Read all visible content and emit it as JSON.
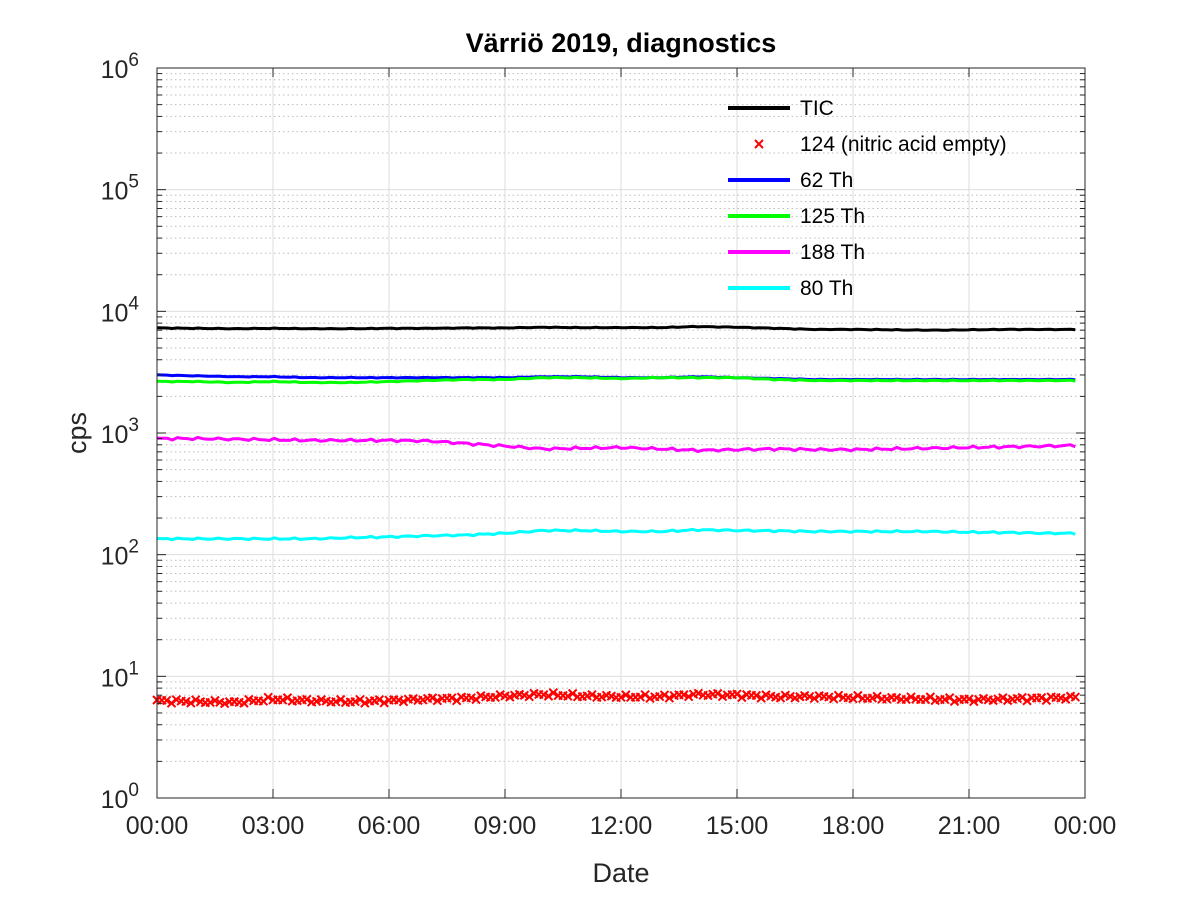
{
  "chart_data": {
    "type": "line",
    "title": "Värriö 2019, diagnostics",
    "xlabel": "Date",
    "ylabel": "cps",
    "x_ticks": [
      "00:00",
      "03:00",
      "06:00",
      "09:00",
      "12:00",
      "15:00",
      "18:00",
      "21:00",
      "00:00"
    ],
    "x_tick_hours": [
      0,
      3,
      6,
      9,
      12,
      15,
      18,
      21,
      24
    ],
    "xlim_hours": [
      0,
      24
    ],
    "y_scale": "log",
    "ylim": [
      1,
      1000000
    ],
    "y_tick_values": [
      1,
      10,
      100,
      1000,
      10000,
      100000,
      1000000
    ],
    "y_ticks": [
      {
        "base": "10",
        "exp": "0"
      },
      {
        "base": "10",
        "exp": "1"
      },
      {
        "base": "10",
        "exp": "2"
      },
      {
        "base": "10",
        "exp": "3"
      },
      {
        "base": "10",
        "exp": "4"
      },
      {
        "base": "10",
        "exp": "5"
      },
      {
        "base": "10",
        "exp": "6"
      }
    ],
    "grid": true,
    "minor_grid": true,
    "legend_position": "top-right",
    "series": [
      {
        "name": "TIC",
        "color": "#000000",
        "style": "line",
        "x": [
          0,
          1,
          2,
          3,
          4,
          5,
          6,
          7,
          8,
          9,
          10,
          11,
          12,
          13,
          14,
          15,
          16,
          17,
          18,
          19,
          20,
          21,
          22,
          23,
          23.75
        ],
        "y": [
          7300,
          7250,
          7200,
          7250,
          7200,
          7200,
          7250,
          7250,
          7300,
          7300,
          7400,
          7350,
          7350,
          7350,
          7500,
          7400,
          7250,
          7100,
          7100,
          7050,
          7000,
          7050,
          7100,
          7100,
          7100
        ]
      },
      {
        "name": "124 (nitric acid empty)",
        "color": "#ff0000",
        "style": "marker-x",
        "x": [
          0,
          1,
          2,
          3,
          4,
          5,
          6,
          7,
          8,
          9,
          10,
          11,
          12,
          13,
          14,
          15,
          16,
          17,
          18,
          19,
          20,
          21,
          22,
          23,
          23.75
        ],
        "y": [
          6.3,
          6.2,
          6.1,
          6.5,
          6.3,
          6.2,
          6.3,
          6.5,
          6.6,
          6.9,
          7.1,
          6.9,
          6.8,
          6.8,
          7.1,
          7.0,
          6.8,
          6.8,
          6.7,
          6.6,
          6.5,
          6.4,
          6.5,
          6.6,
          6.7
        ]
      },
      {
        "name": "62 Th",
        "color": "#0000ff",
        "style": "line",
        "x": [
          0,
          1,
          2,
          3,
          4,
          5,
          6,
          7,
          8,
          9,
          10,
          11,
          12,
          13,
          14,
          15,
          16,
          17,
          18,
          19,
          20,
          21,
          22,
          23,
          23.75
        ],
        "y": [
          3000,
          2950,
          2900,
          2900,
          2850,
          2850,
          2850,
          2850,
          2850,
          2850,
          2900,
          2900,
          2850,
          2850,
          2900,
          2850,
          2800,
          2750,
          2750,
          2750,
          2750,
          2750,
          2750,
          2750,
          2750
        ]
      },
      {
        "name": "125 Th",
        "color": "#00ff00",
        "style": "line",
        "x": [
          0,
          1,
          2,
          3,
          4,
          5,
          6,
          7,
          8,
          9,
          10,
          11,
          12,
          13,
          14,
          15,
          16,
          17,
          18,
          19,
          20,
          21,
          22,
          23,
          23.75
        ],
        "y": [
          2650,
          2650,
          2600,
          2650,
          2600,
          2600,
          2650,
          2700,
          2750,
          2750,
          2850,
          2850,
          2800,
          2850,
          2850,
          2850,
          2750,
          2700,
          2700,
          2700,
          2700,
          2700,
          2700,
          2700,
          2700
        ]
      },
      {
        "name": "188 Th",
        "color": "#ff00ff",
        "style": "line",
        "x": [
          0,
          1,
          2,
          3,
          4,
          5,
          6,
          7,
          8,
          9,
          10,
          11,
          12,
          13,
          14,
          15,
          16,
          17,
          18,
          19,
          20,
          21,
          22,
          23,
          23.75
        ],
        "y": [
          900,
          900,
          890,
          880,
          870,
          870,
          870,
          860,
          820,
          780,
          740,
          750,
          760,
          740,
          720,
          730,
          740,
          730,
          730,
          740,
          750,
          760,
          770,
          780,
          790
        ]
      },
      {
        "name": "80 Th",
        "color": "#00ffff",
        "style": "line",
        "x": [
          0,
          1,
          2,
          3,
          4,
          5,
          6,
          7,
          8,
          9,
          10,
          11,
          12,
          13,
          14,
          15,
          16,
          17,
          18,
          19,
          20,
          21,
          22,
          23,
          23.75
        ],
        "y": [
          135,
          135,
          135,
          135,
          135,
          138,
          140,
          143,
          145,
          150,
          158,
          158,
          155,
          155,
          160,
          158,
          157,
          155,
          155,
          155,
          155,
          153,
          152,
          150,
          150
        ]
      }
    ]
  }
}
